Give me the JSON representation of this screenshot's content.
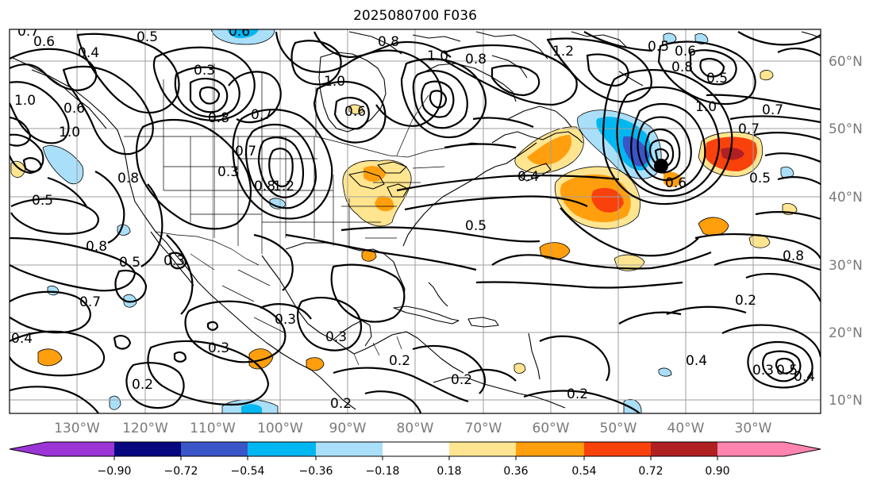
{
  "title": "2025080700 F036",
  "lon_labels": [
    "130°W",
    "120°W",
    "110°W",
    "100°W",
    "90°W",
    "80°W",
    "70°W",
    "60°W",
    "50°W",
    "40°W",
    "30°W"
  ],
  "lat_labels": [
    "10°N",
    "20°N",
    "30°N",
    "40°N",
    "50°N",
    "60°N"
  ],
  "colorbar": {
    "ticks": [
      "−0.90",
      "−0.72",
      "−0.54",
      "−0.36",
      "−0.18",
      "0.18",
      "0.36",
      "0.54",
      "0.72",
      "0.90"
    ],
    "colors": [
      "#9b35d6",
      "#07077f",
      "#3a55c8",
      "#00b7f2",
      "#aadff9",
      "#ffffff",
      "#ffe590",
      "#ff9f0e",
      "#f9410c",
      "#b01f22",
      "#ff85b0"
    ]
  },
  "contour_labels": [
    "0.7",
    "0.6",
    "0.4",
    "0.5",
    "0.6",
    "0.8",
    "1.0",
    "1.2",
    "0.8",
    "1.0",
    "0.5",
    "0.6",
    "0.8",
    "0.5",
    "0.6",
    "0.3",
    "0.7",
    "1.0",
    "0.6",
    "0.8",
    "0.7",
    "1.0",
    "0.3",
    "0.8",
    "1.2",
    "0.5",
    "0.8",
    "0.5",
    "0.8",
    "0.3",
    "0.7",
    "0.4",
    "0.3",
    "0.3",
    "0.2",
    "0.3",
    "0.2",
    "0.2",
    "0.2",
    "0.2",
    "0.4",
    "0.5",
    "0.4",
    "0.2",
    "0.3",
    "0.5",
    "0.4",
    "0.8",
    "0.7",
    "0.5",
    "1.0",
    "0.7",
    "0.6"
  ]
}
